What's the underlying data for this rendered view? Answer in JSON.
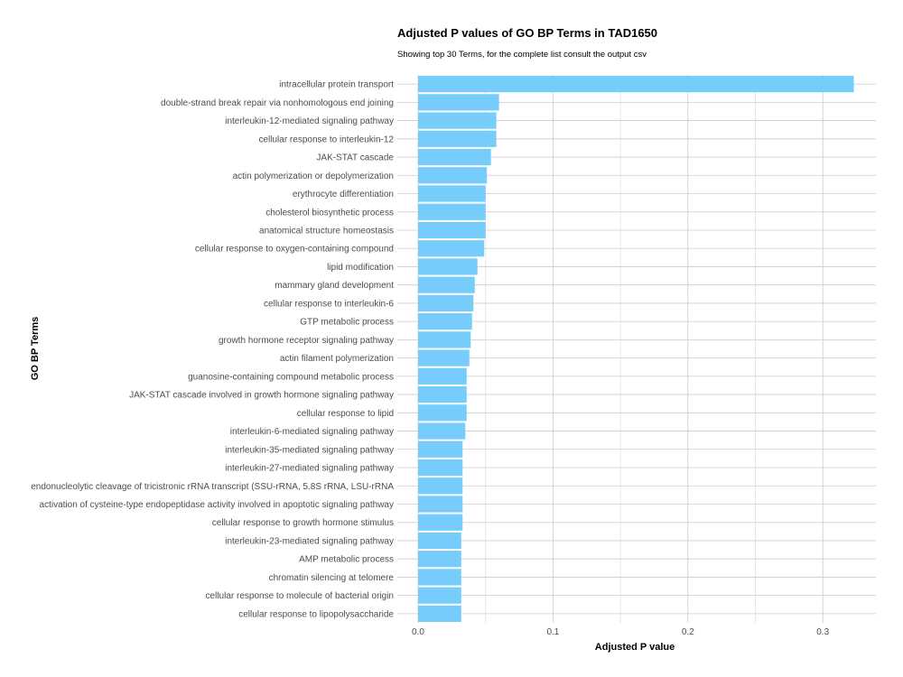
{
  "colors": {
    "bar": "#76cdfb"
  },
  "chart_data": {
    "type": "bar",
    "orientation": "horizontal",
    "title": "Adjusted P values of GO BP Terms in TAD1650",
    "subtitle": "Showing top 30 Terms, for the complete list consult the output csv",
    "xlabel": "Adjusted P value",
    "ylabel": "GO BP Terms",
    "xlim": [
      0,
      0.34
    ],
    "xticks": [
      0.0,
      0.1,
      0.2,
      0.3
    ],
    "xtick_labels": [
      "0.0",
      "0.1",
      "0.2",
      "0.3"
    ],
    "grid": true,
    "legend": "none",
    "categories": [
      "intracellular protein transport",
      "double-strand break repair via nonhomologous end joining",
      "interleukin-12-mediated signaling pathway",
      "cellular response to interleukin-12",
      "JAK-STAT cascade",
      "actin polymerization or depolymerization",
      "erythrocyte differentiation",
      "cholesterol biosynthetic process",
      "anatomical structure homeostasis",
      "cellular response to oxygen-containing compound",
      "lipid modification",
      "mammary gland development",
      "cellular response to interleukin-6",
      "GTP metabolic process",
      "growth hormone receptor signaling pathway",
      "actin filament polymerization",
      "guanosine-containing compound metabolic process",
      "JAK-STAT cascade involved in growth hormone signaling pathway",
      "cellular response to lipid",
      "interleukin-6-mediated signaling pathway",
      "interleukin-35-mediated signaling pathway",
      "interleukin-27-mediated signaling pathway",
      "endonucleolytic cleavage of tricistronic rRNA transcript (SSU-rRNA, 5.8S rRNA, LSU-rRNA",
      "activation of cysteine-type endopeptidase activity involved in apoptotic signaling pathway",
      "cellular response to growth hormone stimulus",
      "interleukin-23-mediated signaling pathway",
      "AMP metabolic process",
      "chromatin silencing at telomere",
      "cellular response to molecule of bacterial origin",
      "cellular response to lipopolysaccharide"
    ],
    "values": [
      0.323,
      0.06,
      0.058,
      0.058,
      0.054,
      0.051,
      0.05,
      0.05,
      0.05,
      0.049,
      0.044,
      0.042,
      0.041,
      0.04,
      0.039,
      0.038,
      0.036,
      0.036,
      0.036,
      0.035,
      0.033,
      0.033,
      0.033,
      0.033,
      0.033,
      0.032,
      0.032,
      0.032,
      0.032,
      0.032
    ]
  }
}
